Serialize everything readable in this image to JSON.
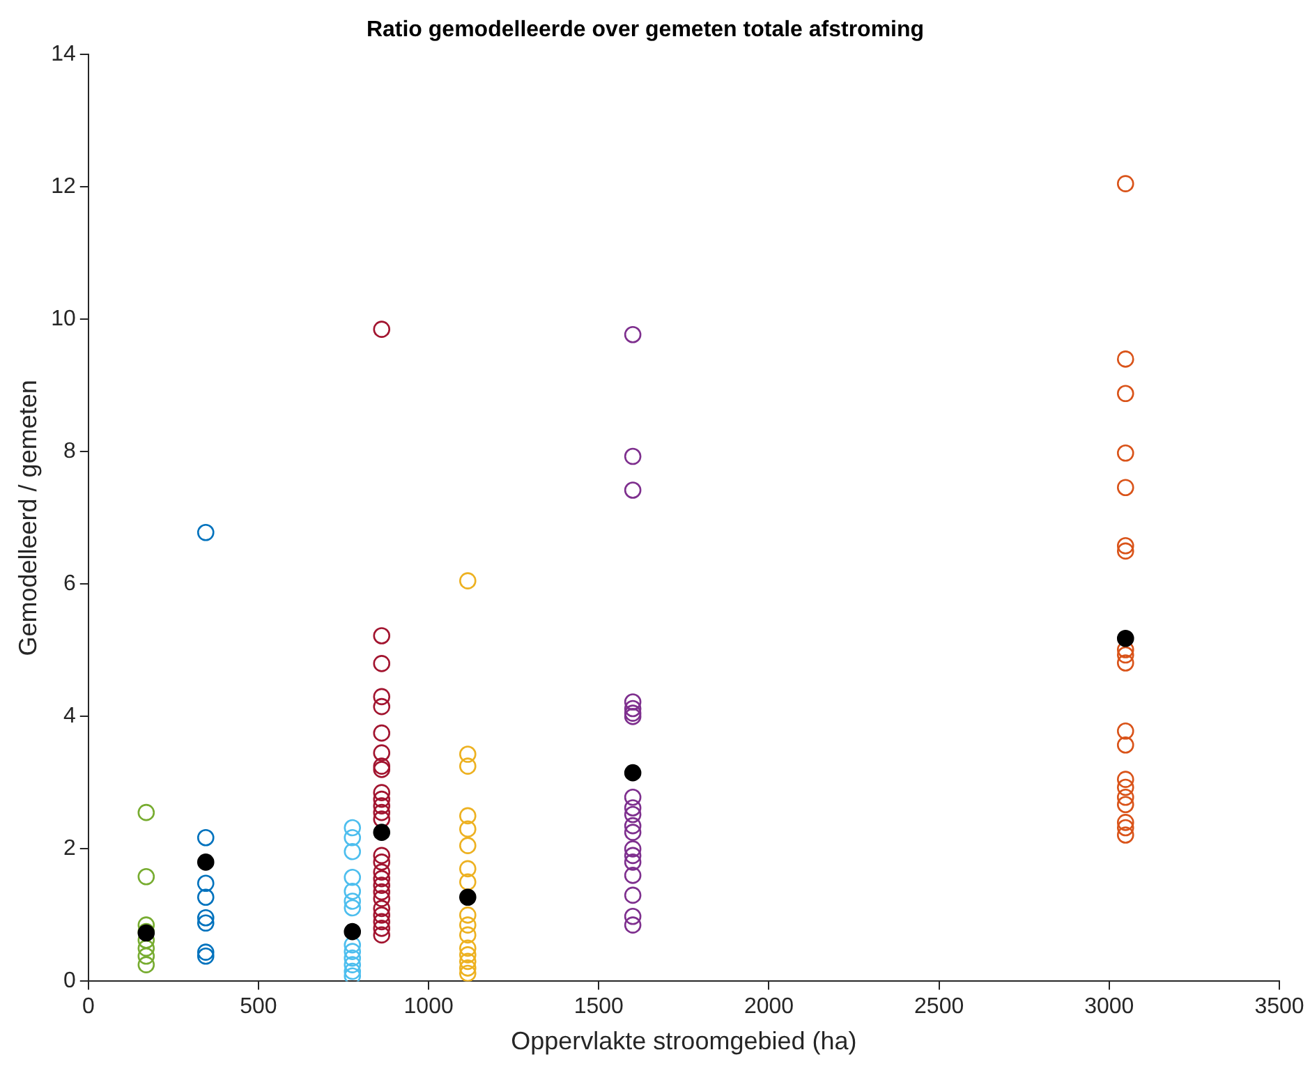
{
  "chart_data": {
    "type": "scatter",
    "title": "Ratio gemodelleerde over gemeten totale afstroming",
    "xlabel": "Oppervlakte stroomgebied (ha)",
    "ylabel": "Gemodelleerd / gemeten",
    "xlim": [
      0,
      3500
    ],
    "xticks": [
      0,
      500,
      1000,
      1500,
      2000,
      2500,
      3000,
      3500
    ],
    "ylim": [
      0,
      14
    ],
    "yticks": [
      0,
      2,
      4,
      6,
      8,
      10,
      12,
      14
    ],
    "grid": false,
    "legend": false,
    "marker": "circle",
    "series": [
      {
        "color": "#77ac30",
        "x": [
          170,
          170,
          170,
          170,
          170,
          170,
          170,
          170
        ],
        "values": [
          2.55,
          1.58,
          0.85,
          0.75,
          0.62,
          0.5,
          0.38,
          0.25
        ]
      },
      {
        "color": "#0072bd",
        "x": [
          345,
          345,
          345,
          345,
          345,
          345,
          345,
          345
        ],
        "values": [
          6.78,
          2.17,
          1.48,
          1.27,
          0.96,
          0.88,
          0.44,
          0.38
        ]
      },
      {
        "color": "#4dbeee",
        "x": [
          776,
          776,
          776,
          776,
          776,
          776,
          776,
          776,
          776,
          776,
          776,
          776,
          776
        ],
        "values": [
          2.32,
          2.17,
          1.96,
          1.57,
          1.36,
          1.21,
          1.11,
          0.55,
          0.45,
          0.35,
          0.25,
          0.15,
          0.08
        ]
      },
      {
        "color": "#a2142f",
        "x": [
          862,
          862,
          862,
          862,
          862,
          862,
          862,
          862,
          862,
          862,
          862,
          862,
          862,
          862,
          862,
          862,
          862,
          862,
          862,
          862,
          862,
          862,
          862,
          862,
          862,
          862
        ],
        "values": [
          9.85,
          5.22,
          4.8,
          4.3,
          4.15,
          3.75,
          3.45,
          3.25,
          3.2,
          2.85,
          2.75,
          2.65,
          2.55,
          2.45,
          1.9,
          1.8,
          1.65,
          1.55,
          1.45,
          1.35,
          1.25,
          1.1,
          1.0,
          0.9,
          0.8,
          0.7
        ]
      },
      {
        "color": "#edb120",
        "x": [
          1115,
          1115,
          1115,
          1115,
          1115,
          1115,
          1115,
          1115,
          1115,
          1115,
          1115,
          1115,
          1115,
          1115,
          1115,
          1115
        ],
        "values": [
          6.05,
          3.43,
          3.25,
          2.5,
          2.3,
          2.05,
          1.7,
          1.5,
          1.0,
          0.85,
          0.7,
          0.5,
          0.4,
          0.3,
          0.2,
          0.12
        ]
      },
      {
        "color": "#7e2f8e",
        "x": [
          1600,
          1600,
          1600,
          1600,
          1600,
          1600,
          1600,
          1600,
          1600,
          1600,
          1600,
          1600,
          1600,
          1600,
          1600,
          1600,
          1600,
          1600,
          1600
        ],
        "values": [
          9.77,
          7.93,
          7.42,
          4.22,
          4.12,
          4.05,
          4.0,
          2.78,
          2.62,
          2.52,
          2.35,
          2.25,
          2.0,
          1.9,
          1.8,
          1.6,
          1.3,
          0.98,
          0.85
        ]
      },
      {
        "color": "#d95319",
        "x": [
          3048,
          3048,
          3048,
          3048,
          3048,
          3048,
          3048,
          3048,
          3048,
          3048,
          3048,
          3048,
          3048,
          3048,
          3048,
          3048,
          3048,
          3048,
          3048
        ],
        "values": [
          12.05,
          9.4,
          8.88,
          7.98,
          7.46,
          6.58,
          6.5,
          5.01,
          4.93,
          4.81,
          3.78,
          3.57,
          3.05,
          2.93,
          2.78,
          2.67,
          2.4,
          2.32,
          2.21
        ]
      },
      {
        "color": "#000000",
        "x": [
          170,
          345,
          776,
          862,
          1115,
          1600,
          3048
        ],
        "values": [
          0.73,
          1.8,
          0.75,
          2.25,
          1.27,
          3.15,
          5.18
        ]
      }
    ]
  }
}
